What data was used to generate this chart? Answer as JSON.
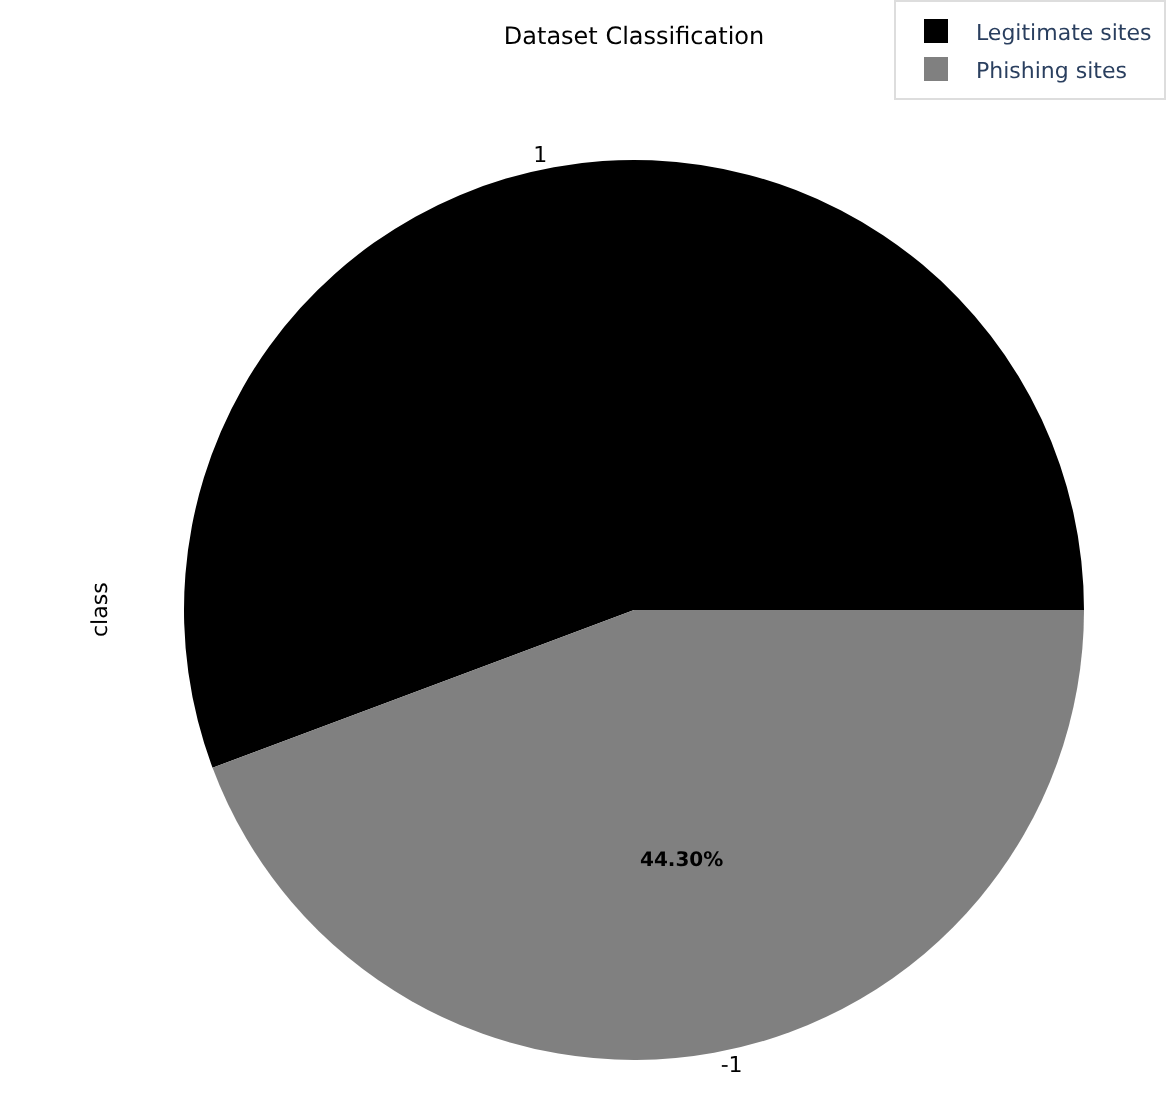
{
  "chart_data": {
    "type": "pie",
    "title": "Dataset Classification",
    "ylabel": "class",
    "categories": [
      "Legitimate sites",
      "Phishing sites"
    ],
    "values": [
      55.7,
      44.3
    ],
    "colors": [
      "#000000",
      "#808080"
    ],
    "value_labels": [
      null,
      "44.30%"
    ],
    "annotations": [
      "1",
      "-1"
    ],
    "legend": "top right"
  }
}
